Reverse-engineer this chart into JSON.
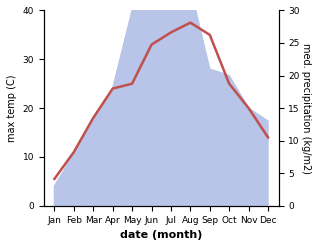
{
  "months": [
    "Jan",
    "Feb",
    "Mar",
    "Apr",
    "May",
    "Jun",
    "Jul",
    "Aug",
    "Sep",
    "Oct",
    "Nov",
    "Dec"
  ],
  "temperature": [
    5.5,
    11.0,
    18.0,
    24.0,
    25.0,
    33.0,
    35.5,
    37.5,
    35.0,
    25.0,
    20.0,
    14.0
  ],
  "precipitation": [
    3.0,
    8.0,
    13.0,
    18.0,
    30.0,
    40.0,
    32.0,
    33.5,
    21.0,
    20.0,
    15.0,
    13.0
  ],
  "temp_color": "#c0504d",
  "precip_fill_color": "#b8c4e8",
  "xlabel": "date (month)",
  "ylabel_left": "max temp (C)",
  "ylabel_right": "med. precipitation (kg/m2)",
  "ylim_left": [
    0,
    40
  ],
  "ylim_right": [
    0,
    30
  ],
  "yticks_left": [
    0,
    10,
    20,
    30,
    40
  ],
  "yticks_right": [
    0,
    5,
    10,
    15,
    20,
    25,
    30
  ],
  "background_color": "#ffffff"
}
